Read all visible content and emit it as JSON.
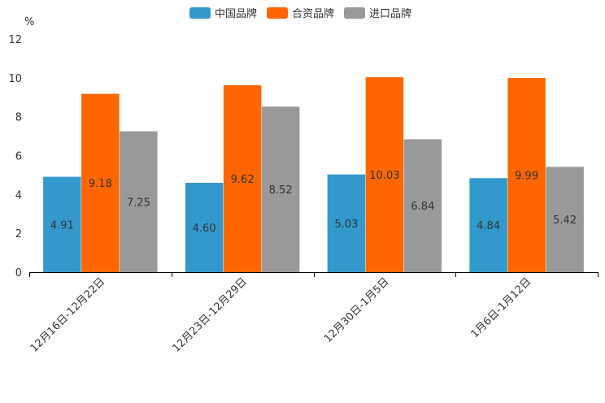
{
  "chart_data": {
    "type": "bar",
    "unit": "%",
    "categories": [
      "12月16日-12月22日",
      "12月23日-12月29日",
      "12月30日-1月5日",
      "1月6日-1月12日"
    ],
    "series": [
      {
        "name": "中国品牌",
        "color": "#3399cc",
        "values": [
          4.91,
          4.6,
          5.03,
          4.84
        ]
      },
      {
        "name": "合资品牌",
        "color": "#ff6600",
        "values": [
          9.18,
          9.62,
          10.03,
          9.99
        ]
      },
      {
        "name": "进口品牌",
        "color": "#999999",
        "values": [
          7.25,
          8.52,
          6.84,
          5.42
        ]
      }
    ],
    "ylim": [
      0,
      12
    ],
    "yticks": [
      0,
      2,
      4,
      6,
      8,
      10,
      12
    ],
    "data_label_format": "2 decimals",
    "legend_position": "top-center"
  }
}
